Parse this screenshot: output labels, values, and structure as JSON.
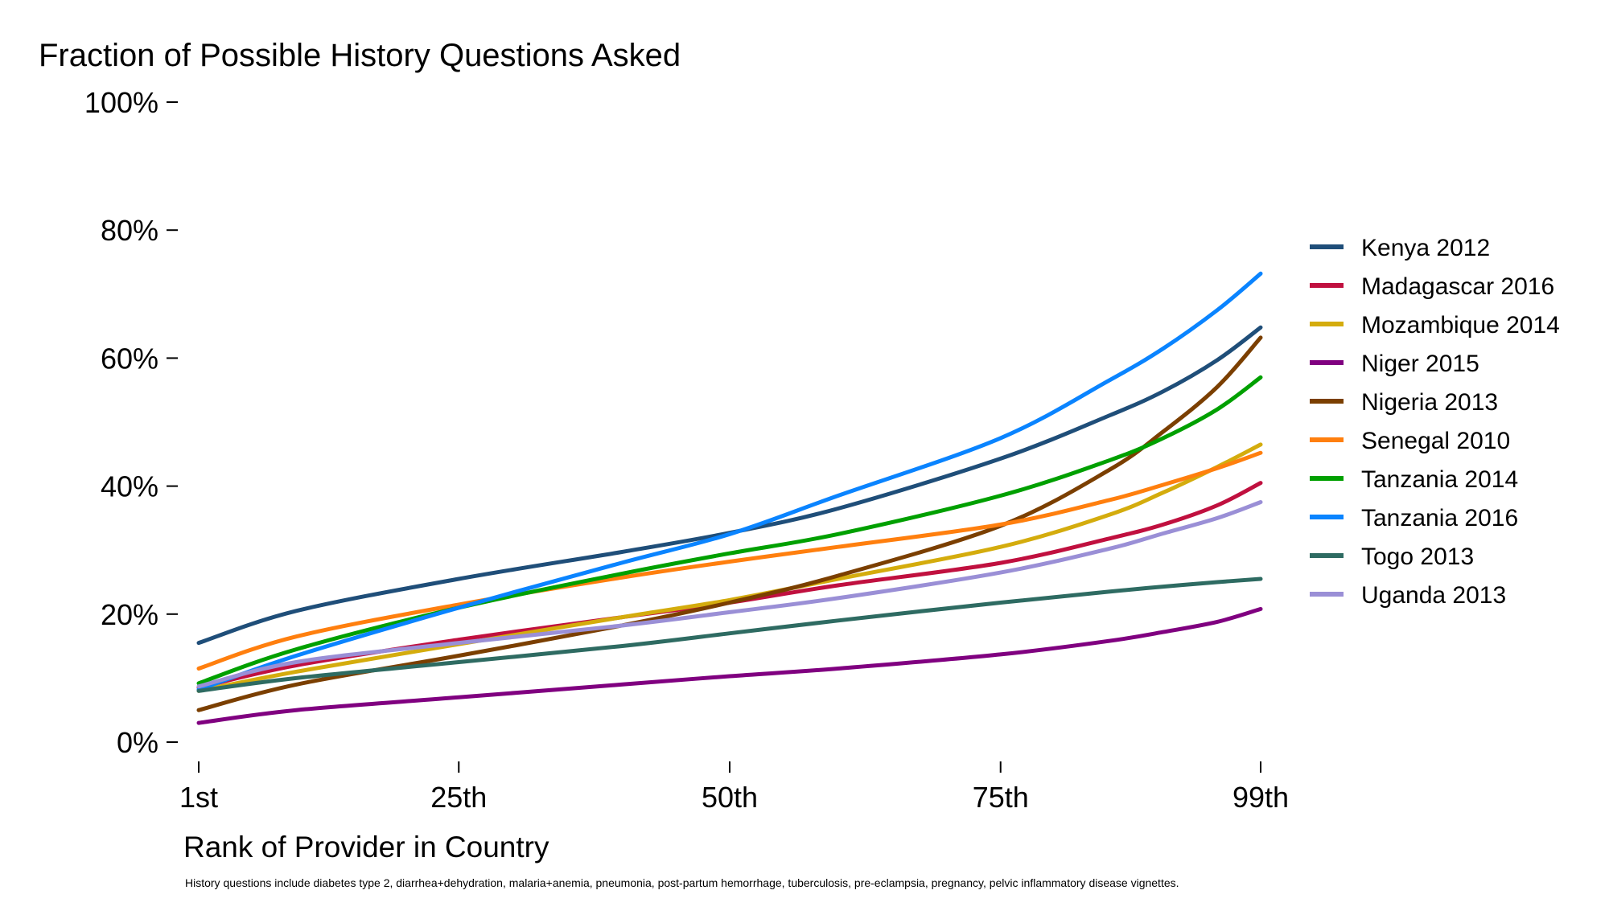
{
  "chart_data": {
    "type": "line",
    "title": "Fraction of Possible History Questions Asked",
    "xlabel": "Rank of Provider in Country",
    "ylabel": "",
    "note": "History questions include diabetes type 2, diarrhea+dehydration, malaria+anemia, pneumonia, post-partum hemorrhage, tuberculosis, pre-eclampsia, pregnancy, pelvic inflammatory disease vignettes.",
    "xlim": [
      1,
      99
    ],
    "ylim": [
      0,
      100
    ],
    "x_ticks": [
      {
        "value": 1,
        "label": "1st"
      },
      {
        "value": 25,
        "label": "25th"
      },
      {
        "value": 50,
        "label": "50th"
      },
      {
        "value": 75,
        "label": "75th"
      },
      {
        "value": 99,
        "label": "99th"
      }
    ],
    "y_ticks": [
      {
        "value": 0,
        "label": "0%"
      },
      {
        "value": 20,
        "label": "20%"
      },
      {
        "value": 40,
        "label": "40%"
      },
      {
        "value": 60,
        "label": "60%"
      },
      {
        "value": 80,
        "label": "80%"
      },
      {
        "value": 100,
        "label": "100%"
      }
    ],
    "grid": false,
    "legend_position": "right",
    "x": [
      1,
      10,
      25,
      40,
      50,
      60,
      75,
      85,
      90,
      95,
      99
    ],
    "series": [
      {
        "name": "Kenya 2012",
        "color": "#1f4e79",
        "values": [
          15.5,
          20.5,
          25.5,
          29.7,
          32.7,
          36.5,
          44.3,
          51.0,
          54.8,
          59.7,
          64.8
        ]
      },
      {
        "name": "Madagascar 2016",
        "color": "#c0103f",
        "values": [
          8.5,
          12.0,
          16.0,
          19.5,
          21.8,
          24.5,
          28.0,
          31.8,
          34.0,
          37.0,
          40.5
        ]
      },
      {
        "name": "Mozambique 2014",
        "color": "#d4ac0d",
        "values": [
          8.0,
          11.0,
          15.3,
          19.5,
          22.2,
          25.5,
          30.5,
          35.5,
          39.0,
          43.0,
          46.5
        ]
      },
      {
        "name": "Niger 2015",
        "color": "#800080",
        "values": [
          3.0,
          5.0,
          7.0,
          9.0,
          10.3,
          11.5,
          13.7,
          15.8,
          17.2,
          18.8,
          20.8
        ]
      },
      {
        "name": "Nigeria 2013",
        "color": "#7b3f00",
        "values": [
          5.0,
          9.0,
          13.5,
          18.2,
          21.8,
          26.0,
          33.8,
          42.5,
          48.5,
          55.5,
          63.2
        ]
      },
      {
        "name": "Senegal 2010",
        "color": "#ff7f0e",
        "values": [
          11.5,
          16.5,
          21.5,
          25.7,
          28.2,
          30.5,
          34.0,
          37.8,
          40.2,
          42.8,
          45.2
        ]
      },
      {
        "name": "Tanzania 2014",
        "color": "#00a000",
        "values": [
          9.2,
          14.5,
          21.0,
          26.3,
          29.5,
          32.5,
          38.5,
          44.0,
          47.5,
          52.0,
          57.0
        ]
      },
      {
        "name": "Tanzania 2016",
        "color": "#0a84ff",
        "values": [
          8.2,
          13.5,
          21.0,
          28.0,
          32.5,
          38.5,
          47.5,
          56.5,
          61.5,
          67.5,
          73.2
        ]
      },
      {
        "name": "Togo 2013",
        "color": "#2e6b62",
        "values": [
          8.0,
          10.0,
          12.5,
          15.0,
          17.0,
          19.0,
          21.8,
          23.5,
          24.3,
          25.0,
          25.5
        ]
      },
      {
        "name": "Uganda 2013",
        "color": "#9a8fd6",
        "values": [
          8.7,
          12.5,
          15.5,
          18.2,
          20.3,
          22.5,
          26.5,
          30.2,
          32.6,
          35.0,
          37.5
        ]
      }
    ]
  }
}
